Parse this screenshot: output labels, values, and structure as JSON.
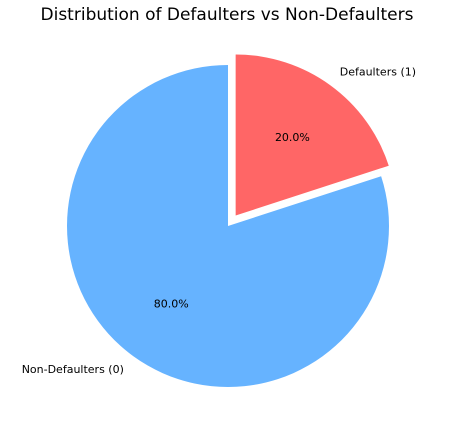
{
  "chart_data": {
    "type": "pie",
    "title": "Distribution of Defaulters vs Non-Defaulters",
    "slices": [
      {
        "label": "Defaulters (1)",
        "value": 20.0,
        "percent_label": "20.0%",
        "color": "#ff6666",
        "exploded": true
      },
      {
        "label": "Non-Defaulters (0)",
        "value": 80.0,
        "percent_label": "80.0%",
        "color": "#66b3ff",
        "exploded": false
      }
    ],
    "start_angle_deg": 90,
    "direction": "clockwise"
  }
}
